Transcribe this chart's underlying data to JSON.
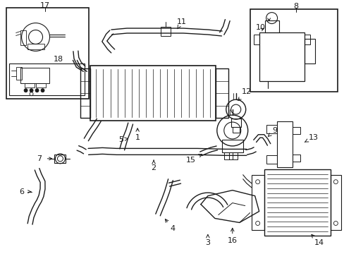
{
  "bg": "#ffffff",
  "lc": "#1a1a1a",
  "lw": 1.0,
  "fig_w": 4.89,
  "fig_h": 3.6,
  "dpi": 100,
  "xlim": [
    0,
    489
  ],
  "ylim": [
    0,
    360
  ]
}
